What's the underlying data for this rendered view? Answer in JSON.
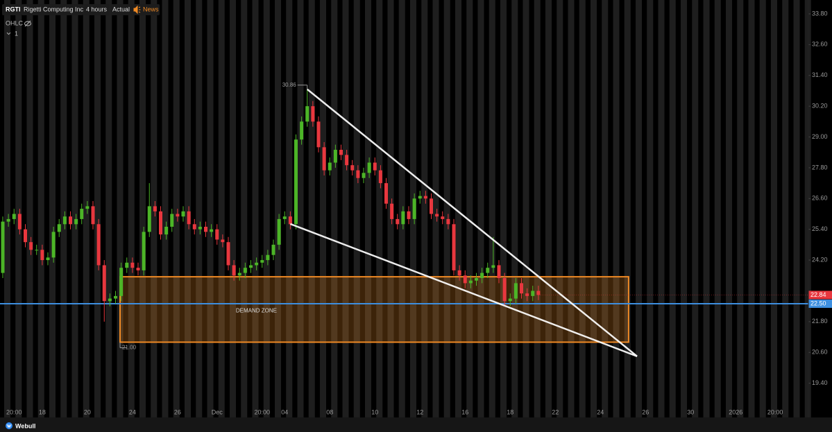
{
  "header": {
    "symbol": "RGTI",
    "name": "Rigetti Computing Inc",
    "interval": "4 hours",
    "mode": "Actual",
    "news": "News",
    "indicator": "OHLC",
    "pane": "1"
  },
  "footer": {
    "brand": "Webull"
  },
  "chart_data": {
    "type": "candlestick",
    "up_color": "#4cb527",
    "down_color": "#e8373e",
    "categories": [
      null,
      null,
      "20:00",
      null,
      null,
      null,
      null,
      "18",
      null,
      null,
      null,
      null,
      null,
      null,
      null,
      "20",
      null,
      null,
      null,
      null,
      null,
      null,
      null,
      "24",
      null,
      null,
      null,
      null,
      null,
      null,
      null,
      "26",
      null,
      null,
      null,
      null,
      null,
      null,
      "Dec",
      null,
      null,
      null,
      null,
      null,
      null,
      null,
      "20:00",
      null,
      null,
      null,
      "04",
      null,
      null,
      null,
      null,
      null,
      null,
      null,
      "08",
      null,
      null,
      null,
      null,
      null,
      null,
      null,
      "10",
      null,
      null,
      null,
      null,
      null,
      null,
      null,
      "12",
      null,
      null,
      null,
      null,
      null,
      null,
      null,
      "16",
      null,
      null,
      null,
      null,
      null,
      null,
      null,
      "18",
      null,
      null,
      null,
      null,
      null,
      null,
      null,
      "22",
      null,
      null,
      null,
      null,
      null,
      null,
      null,
      "24",
      null,
      null,
      null,
      null,
      null,
      null,
      null,
      "26",
      null,
      null,
      null,
      null,
      null,
      null,
      null,
      "30",
      null,
      null,
      null,
      null,
      null,
      null,
      null,
      "2026",
      null,
      null,
      null,
      null,
      null,
      null,
      "20:00",
      null,
      null,
      null,
      null,
      null
    ],
    "open": [
      23.7,
      25.7,
      25.8,
      26.0,
      25.4,
      24.9,
      24.6,
      24.6,
      24.2,
      24.3,
      25.3,
      25.6,
      25.9,
      25.6,
      25.8,
      26.2,
      26.3,
      25.6,
      24.0,
      22.6,
      22.7,
      22.8,
      23.9,
      24.1,
      23.9,
      23.8,
      25.3,
      26.3,
      26.1,
      25.2,
      25.5,
      26.0,
      25.9,
      26.1,
      25.6,
      25.4,
      25.5,
      25.3,
      25.4,
      25.0,
      24.9,
      24.0,
      23.6,
      23.7,
      23.9,
      24.0,
      24.1,
      24.2,
      24.4,
      24.8,
      25.8,
      25.9,
      25.6,
      28.9,
      29.6,
      30.2,
      29.6,
      28.6,
      27.7,
      28.0,
      28.5,
      28.3,
      27.9,
      27.7,
      27.4,
      27.6,
      28.0,
      27.7,
      27.2,
      26.4,
      25.8,
      25.6,
      26.1,
      25.8,
      26.6,
      26.7,
      26.6,
      26.0,
      25.9,
      25.8,
      25.6,
      23.8,
      23.6,
      23.3,
      23.4,
      23.5,
      23.7,
      23.9,
      24.0,
      23.5,
      22.6,
      22.7,
      23.3,
      22.9,
      22.8,
      23.0,
      null,
      null,
      null,
      null,
      null,
      null,
      null,
      null,
      null,
      null,
      null,
      null,
      null,
      null,
      null,
      null,
      null,
      null,
      null,
      null,
      null,
      null,
      null,
      null,
      null,
      null,
      null,
      null,
      null,
      null,
      null,
      null,
      null,
      null,
      null,
      null,
      null,
      null,
      null,
      null,
      null,
      null,
      null,
      null,
      null,
      null,
      null
    ],
    "high": [
      25.9,
      26.0,
      26.2,
      26.2,
      25.6,
      25.1,
      24.8,
      24.8,
      24.5,
      25.5,
      25.8,
      26.1,
      26.1,
      26.0,
      26.4,
      26.5,
      26.5,
      25.8,
      24.2,
      22.9,
      23.0,
      24.1,
      24.3,
      24.3,
      24.1,
      25.5,
      27.2,
      26.5,
      26.3,
      25.7,
      26.2,
      26.2,
      26.3,
      26.3,
      25.8,
      25.7,
      25.7,
      25.6,
      25.6,
      25.2,
      25.1,
      24.2,
      23.9,
      24.1,
      24.2,
      24.3,
      24.4,
      24.6,
      25.0,
      26.0,
      26.1,
      26.1,
      29.1,
      29.8,
      30.86,
      30.4,
      29.8,
      28.8,
      28.2,
      28.7,
      28.7,
      28.5,
      28.1,
      27.9,
      27.8,
      28.2,
      28.2,
      27.9,
      27.4,
      26.6,
      26.0,
      26.3,
      26.3,
      26.8,
      26.9,
      26.9,
      26.8,
      26.2,
      26.1,
      26.0,
      25.8,
      24.0,
      23.8,
      23.6,
      23.7,
      23.9,
      24.1,
      25.1,
      24.2,
      23.7,
      22.9,
      23.5,
      23.5,
      23.1,
      23.2,
      23.2,
      null,
      null,
      null,
      null,
      null,
      null,
      null,
      null,
      null,
      null,
      null,
      null,
      null,
      null,
      null,
      null,
      null,
      null,
      null,
      null,
      null,
      null,
      null,
      null,
      null,
      null,
      null,
      null,
      null,
      null,
      null,
      null,
      null,
      null,
      null,
      null,
      null,
      null,
      null,
      null,
      null,
      null,
      null,
      null,
      null,
      null,
      null
    ],
    "low": [
      23.5,
      25.5,
      25.6,
      25.2,
      24.7,
      24.4,
      24.4,
      24.0,
      24.0,
      24.1,
      25.1,
      25.4,
      25.4,
      25.4,
      25.6,
      26.0,
      25.4,
      23.8,
      21.8,
      22.4,
      22.5,
      22.6,
      23.7,
      23.7,
      23.6,
      23.6,
      25.1,
      25.9,
      25.0,
      25.0,
      25.3,
      25.7,
      25.7,
      25.4,
      25.2,
      25.2,
      25.1,
      25.1,
      24.8,
      24.7,
      23.8,
      23.4,
      23.4,
      23.5,
      23.7,
      23.8,
      23.9,
      24.0,
      24.2,
      24.6,
      25.6,
      25.4,
      25.4,
      28.7,
      29.4,
      29.4,
      28.4,
      27.5,
      27.5,
      27.8,
      28.1,
      27.7,
      27.5,
      27.2,
      27.2,
      27.4,
      27.5,
      27.0,
      26.2,
      25.6,
      25.4,
      25.4,
      25.6,
      25.6,
      26.4,
      26.4,
      25.8,
      25.7,
      25.6,
      25.4,
      23.6,
      23.4,
      23.1,
      23.1,
      23.2,
      23.3,
      23.5,
      23.7,
      23.3,
      22.4,
      22.4,
      22.5,
      22.7,
      22.6,
      22.6,
      22.64,
      null,
      null,
      null,
      null,
      null,
      null,
      null,
      null,
      null,
      null,
      null,
      null,
      null,
      null,
      null,
      null,
      null,
      null,
      null,
      null,
      null,
      null,
      null,
      null,
      null,
      null,
      null,
      null,
      null,
      null,
      null,
      null,
      null,
      null,
      null,
      null,
      null,
      null,
      null,
      null,
      null,
      null,
      null,
      null,
      null,
      null,
      null
    ],
    "close": [
      25.7,
      25.8,
      26.0,
      25.4,
      24.9,
      24.6,
      24.6,
      24.2,
      24.3,
      25.3,
      25.6,
      25.9,
      25.6,
      25.8,
      26.2,
      26.3,
      25.6,
      24.0,
      22.6,
      22.7,
      22.8,
      23.9,
      24.1,
      23.9,
      23.8,
      25.3,
      26.3,
      26.1,
      25.2,
      25.5,
      26.0,
      25.9,
      26.1,
      25.6,
      25.4,
      25.5,
      25.3,
      25.4,
      25.0,
      24.9,
      24.0,
      23.6,
      23.7,
      23.9,
      24.0,
      24.1,
      24.2,
      24.4,
      24.8,
      25.8,
      25.9,
      25.6,
      28.9,
      29.6,
      30.2,
      29.6,
      28.6,
      27.7,
      28.0,
      28.5,
      28.3,
      27.9,
      27.7,
      27.4,
      27.6,
      28.0,
      27.7,
      27.2,
      26.4,
      25.8,
      25.6,
      26.1,
      25.8,
      26.6,
      26.7,
      26.6,
      26.0,
      25.9,
      25.8,
      25.6,
      23.8,
      23.6,
      23.3,
      23.4,
      23.5,
      23.7,
      23.9,
      24.0,
      23.5,
      22.6,
      22.7,
      23.3,
      22.9,
      22.8,
      23.0,
      22.84,
      null,
      null,
      null,
      null,
      null,
      null,
      null,
      null,
      null,
      null,
      null,
      null,
      null,
      null,
      null,
      null,
      null,
      null,
      null,
      null,
      null,
      null,
      null,
      null,
      null,
      null,
      null,
      null,
      null,
      null,
      null,
      null,
      null,
      null,
      null,
      null,
      null,
      null,
      null,
      null,
      null,
      null,
      null,
      null,
      null,
      null,
      null
    ],
    "ylim": [
      18.39,
      34.34
    ],
    "yticks": [
      {
        "value": 33.8,
        "label": "33.80"
      },
      {
        "value": 32.6,
        "label": "32.60"
      },
      {
        "value": 31.4,
        "label": "31.40"
      },
      {
        "value": 30.2,
        "label": "30.20"
      },
      {
        "value": 29,
        "label": "29.00"
      },
      {
        "value": 27.8,
        "label": "27.80"
      },
      {
        "value": 26.6,
        "label": "26.60"
      },
      {
        "value": 25.4,
        "label": "25.40"
      },
      {
        "value": 24.2,
        "label": "24.20"
      },
      {
        "value": 21.8,
        "label": "21.80"
      },
      {
        "value": 20.6,
        "label": "20.60"
      },
      {
        "value": 19.4,
        "label": "19.40"
      }
    ],
    "price_line": {
      "value": 22.5,
      "label": "22.50",
      "color": "#3d8fe0"
    },
    "trend_lines": [
      {
        "x": [
          54,
          112.5
        ],
        "y": [
          30.86,
          20.45
        ]
      },
      {
        "x": [
          51,
          112.5
        ],
        "y": [
          25.61,
          20.45
        ]
      }
    ],
    "zone": {
      "label": "DEMAND ZONE",
      "color": "#f08a24",
      "x": [
        20.8,
        111
      ],
      "y": [
        {
          "value": 21,
          "label": "21.00"
        },
        23.55
      ]
    }
  }
}
